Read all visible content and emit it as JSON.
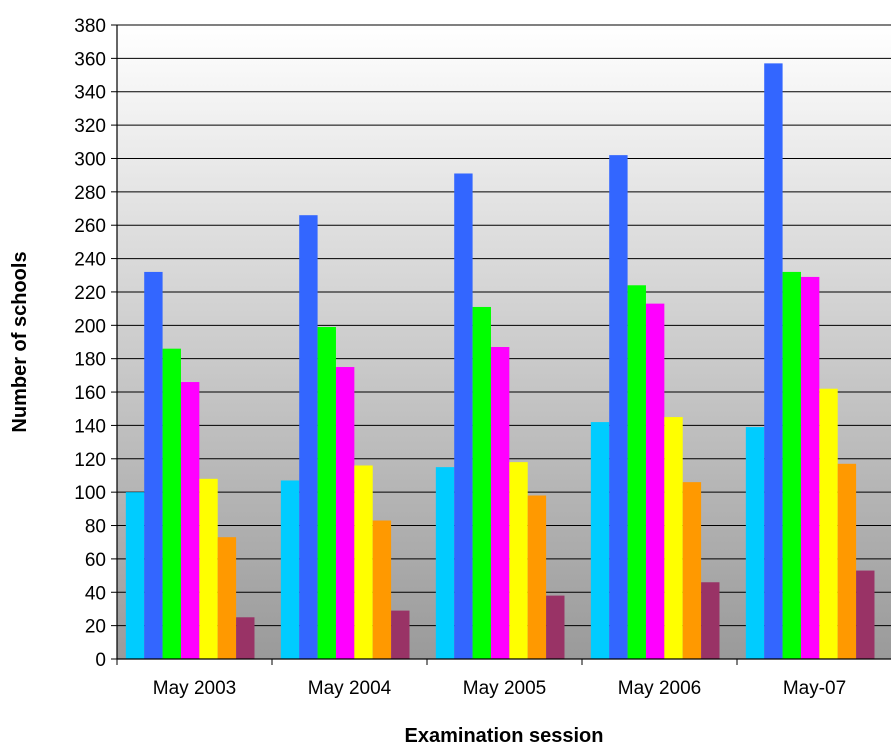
{
  "chart_data": {
    "type": "bar",
    "title": "",
    "xlabel": "Examination session",
    "ylabel": "Number of schools",
    "categories": [
      "May 2003",
      "May 2004",
      "May 2005",
      "May 2006",
      "May-07"
    ],
    "ylim": [
      0,
      380
    ],
    "ytick_step": 20,
    "yticks": [
      "0",
      "20",
      "40",
      "60",
      "80",
      "100",
      "120",
      "140",
      "160",
      "180",
      "200",
      "220",
      "240",
      "260",
      "280",
      "300",
      "320",
      "340",
      "360",
      "380"
    ],
    "grid": true,
    "legend": "none",
    "plot_background": "gradient-white-to-gray",
    "series": [
      {
        "color": "#00ccff",
        "values": [
          100,
          107,
          115,
          142,
          139
        ]
      },
      {
        "color": "#3366ff",
        "values": [
          232,
          266,
          291,
          302,
          357
        ]
      },
      {
        "color": "#00ff00",
        "values": [
          186,
          199,
          211,
          224,
          232
        ]
      },
      {
        "color": "#ff00ff",
        "values": [
          166,
          175,
          187,
          213,
          229
        ]
      },
      {
        "color": "#ffff00",
        "values": [
          108,
          116,
          118,
          145,
          162
        ]
      },
      {
        "color": "#ff9900",
        "values": [
          73,
          83,
          98,
          106,
          117
        ]
      },
      {
        "color": "#993366",
        "values": [
          25,
          29,
          38,
          46,
          53
        ]
      }
    ]
  }
}
